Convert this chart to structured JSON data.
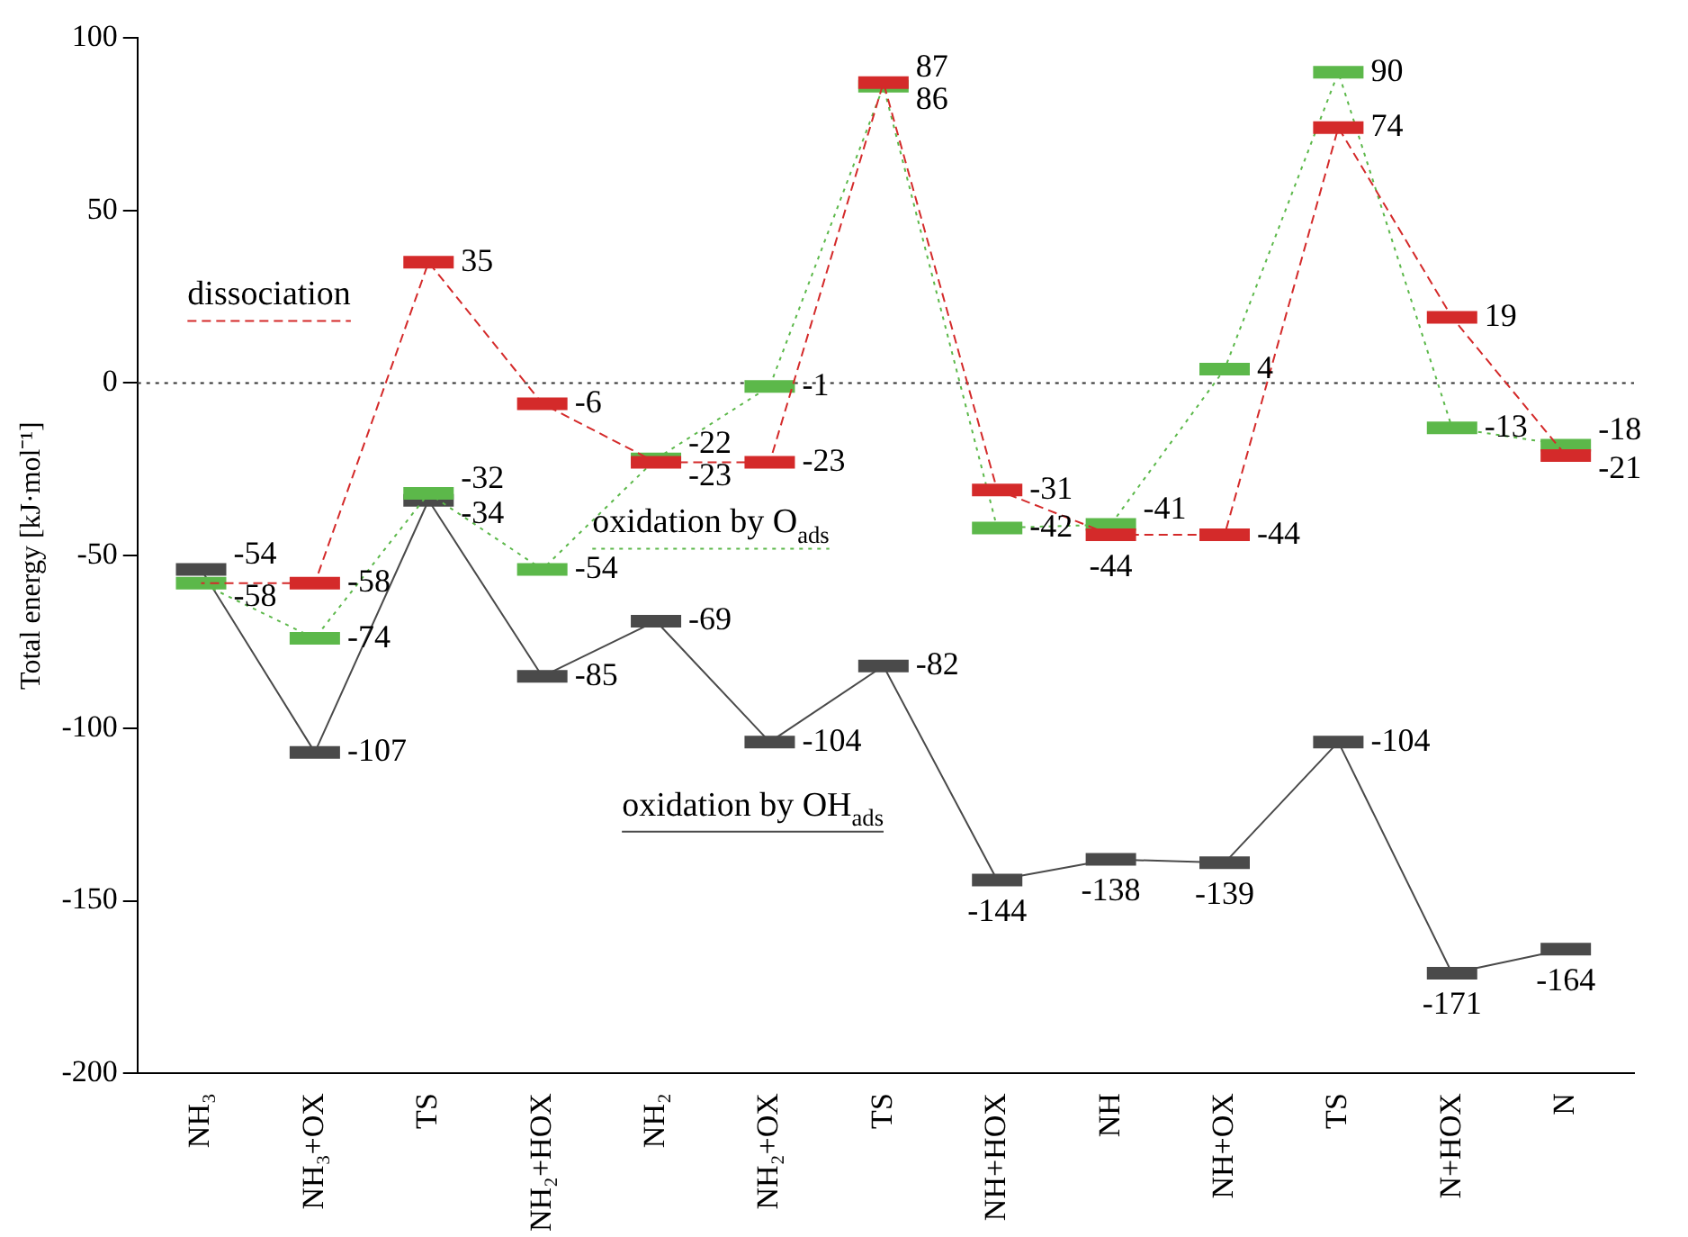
{
  "chart_data": {
    "type": "line",
    "ylabel": "Total energy [kJ·mol⁻¹]",
    "categories": [
      "NH₃",
      "NH₃+OX",
      "TS",
      "NH₂+HOX",
      "NH₂",
      "NH₂+OX",
      "TS",
      "NH+HOX",
      "NH",
      "NH+OX",
      "TS",
      "N+HOX",
      "N"
    ],
    "series": [
      {
        "name": "dissociation",
        "color": "#d42a2a",
        "line_style": "dashed",
        "values": [
          -58,
          -58,
          35,
          -6,
          -23,
          -23,
          87,
          -31,
          -44,
          -44,
          74,
          19,
          -21
        ],
        "value_labels": [
          null,
          "-58",
          "35",
          "-6",
          "-23",
          "-23",
          "87",
          "-31",
          "-44",
          "-44",
          "74",
          "19",
          "-21"
        ]
      },
      {
        "name": "oxidation by O$_{ads}$",
        "color": "#5cb84a",
        "line_style": "dotted",
        "values": [
          -58,
          -74,
          -32,
          -54,
          -22,
          -1,
          86,
          -42,
          -41,
          4,
          90,
          -13,
          -18
        ]
      },
      {
        "name": "oxidation by OH$_{ads}$",
        "color": "#4a4a4a",
        "line_style": "solid",
        "values": [
          -54,
          -107,
          -34,
          -85,
          -69,
          -104,
          -82,
          -144,
          -138,
          -139,
          -104,
          -171,
          -164
        ]
      }
    ],
    "ylim": [
      -200,
      100
    ],
    "yticks": [
      -200,
      -150,
      -100,
      -50,
      0,
      50,
      100
    ],
    "ref_lines": [
      {
        "axis": "y",
        "value": 0,
        "color": "#333333",
        "line_style": "dotted"
      }
    ],
    "data_labels": true,
    "grid": false,
    "legend": "left"
  }
}
